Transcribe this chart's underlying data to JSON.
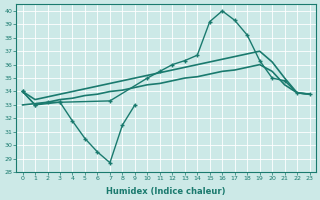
{
  "xlabel": "Humidex (Indice chaleur)",
  "xlim": [
    -0.5,
    23.5
  ],
  "ylim": [
    28,
    40.5
  ],
  "yticks": [
    28,
    29,
    30,
    31,
    32,
    33,
    34,
    35,
    36,
    37,
    38,
    39,
    40
  ],
  "xticks": [
    0,
    1,
    2,
    3,
    4,
    5,
    6,
    7,
    8,
    9,
    10,
    11,
    12,
    13,
    14,
    15,
    16,
    17,
    18,
    19,
    20,
    21,
    22,
    23
  ],
  "bg_color": "#cce9e7",
  "line_color": "#1a7a6e",
  "curve_upper_x": [
    0,
    1,
    2,
    3,
    7,
    10,
    11,
    12,
    13,
    14,
    15,
    16,
    17,
    18,
    19,
    20,
    21,
    22,
    23
  ],
  "curve_upper_y": [
    34.0,
    33.0,
    33.2,
    33.2,
    33.3,
    35.0,
    35.5,
    36.0,
    36.3,
    36.7,
    39.2,
    40.0,
    39.3,
    38.2,
    36.3,
    35.0,
    34.8,
    33.9,
    33.8
  ],
  "curve_lower_x": [
    0,
    1,
    3,
    4,
    5,
    6,
    7,
    8,
    9
  ],
  "curve_lower_y": [
    34.0,
    33.0,
    33.2,
    31.8,
    30.5,
    29.5,
    28.7,
    31.5,
    33.0
  ],
  "trend1_x": [
    0,
    1,
    2,
    3,
    4,
    5,
    6,
    7,
    8,
    9,
    10,
    11,
    12,
    13,
    14,
    15,
    16,
    17,
    18,
    19,
    20,
    21,
    22,
    23
  ],
  "trend1_y": [
    34.0,
    33.4,
    33.6,
    33.8,
    34.0,
    34.2,
    34.4,
    34.6,
    34.8,
    35.0,
    35.2,
    35.4,
    35.6,
    35.8,
    36.0,
    36.2,
    36.4,
    36.6,
    36.8,
    37.0,
    36.2,
    35.0,
    33.9,
    33.8
  ],
  "trend2_x": [
    0,
    1,
    2,
    3,
    4,
    5,
    6,
    7,
    8,
    9,
    10,
    11,
    12,
    13,
    14,
    15,
    16,
    17,
    18,
    19,
    20,
    21,
    22,
    23
  ],
  "trend2_y": [
    33.0,
    33.1,
    33.2,
    33.4,
    33.5,
    33.7,
    33.8,
    34.0,
    34.1,
    34.3,
    34.5,
    34.6,
    34.8,
    35.0,
    35.1,
    35.3,
    35.5,
    35.6,
    35.8,
    36.0,
    35.5,
    34.5,
    33.9,
    33.8
  ]
}
